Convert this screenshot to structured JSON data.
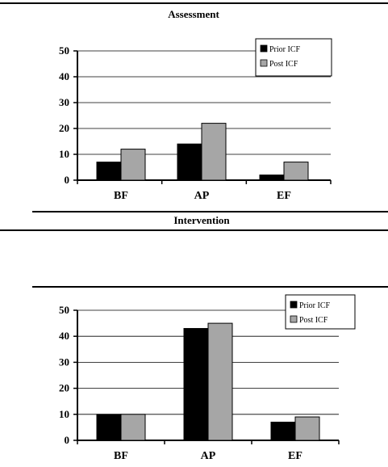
{
  "chart_data": [
    {
      "type": "bar",
      "title": "Assessment",
      "categories": [
        "BF",
        "AP",
        "EF"
      ],
      "series": [
        {
          "name": "Prior ICF",
          "values": [
            7,
            14,
            2
          ],
          "color": "#000000"
        },
        {
          "name": "Post ICF",
          "values": [
            12,
            22,
            7
          ],
          "color": "#a6a6a6"
        }
      ],
      "ylim": [
        0,
        50
      ],
      "yticks": [
        0,
        10,
        20,
        30,
        40,
        50
      ],
      "grid": true,
      "legend": "top-right"
    },
    {
      "type": "bar",
      "title": "Intervention",
      "categories": [
        "BF",
        "AP",
        "EF"
      ],
      "series": [
        {
          "name": "Prior ICF",
          "values": [
            10,
            43,
            7
          ],
          "color": "#000000"
        },
        {
          "name": "Post ICF",
          "values": [
            10,
            45,
            9
          ],
          "color": "#a6a6a6"
        }
      ],
      "ylim": [
        0,
        50
      ],
      "yticks": [
        0,
        10,
        20,
        30,
        40,
        50
      ],
      "grid": true,
      "legend": "top-right"
    }
  ]
}
